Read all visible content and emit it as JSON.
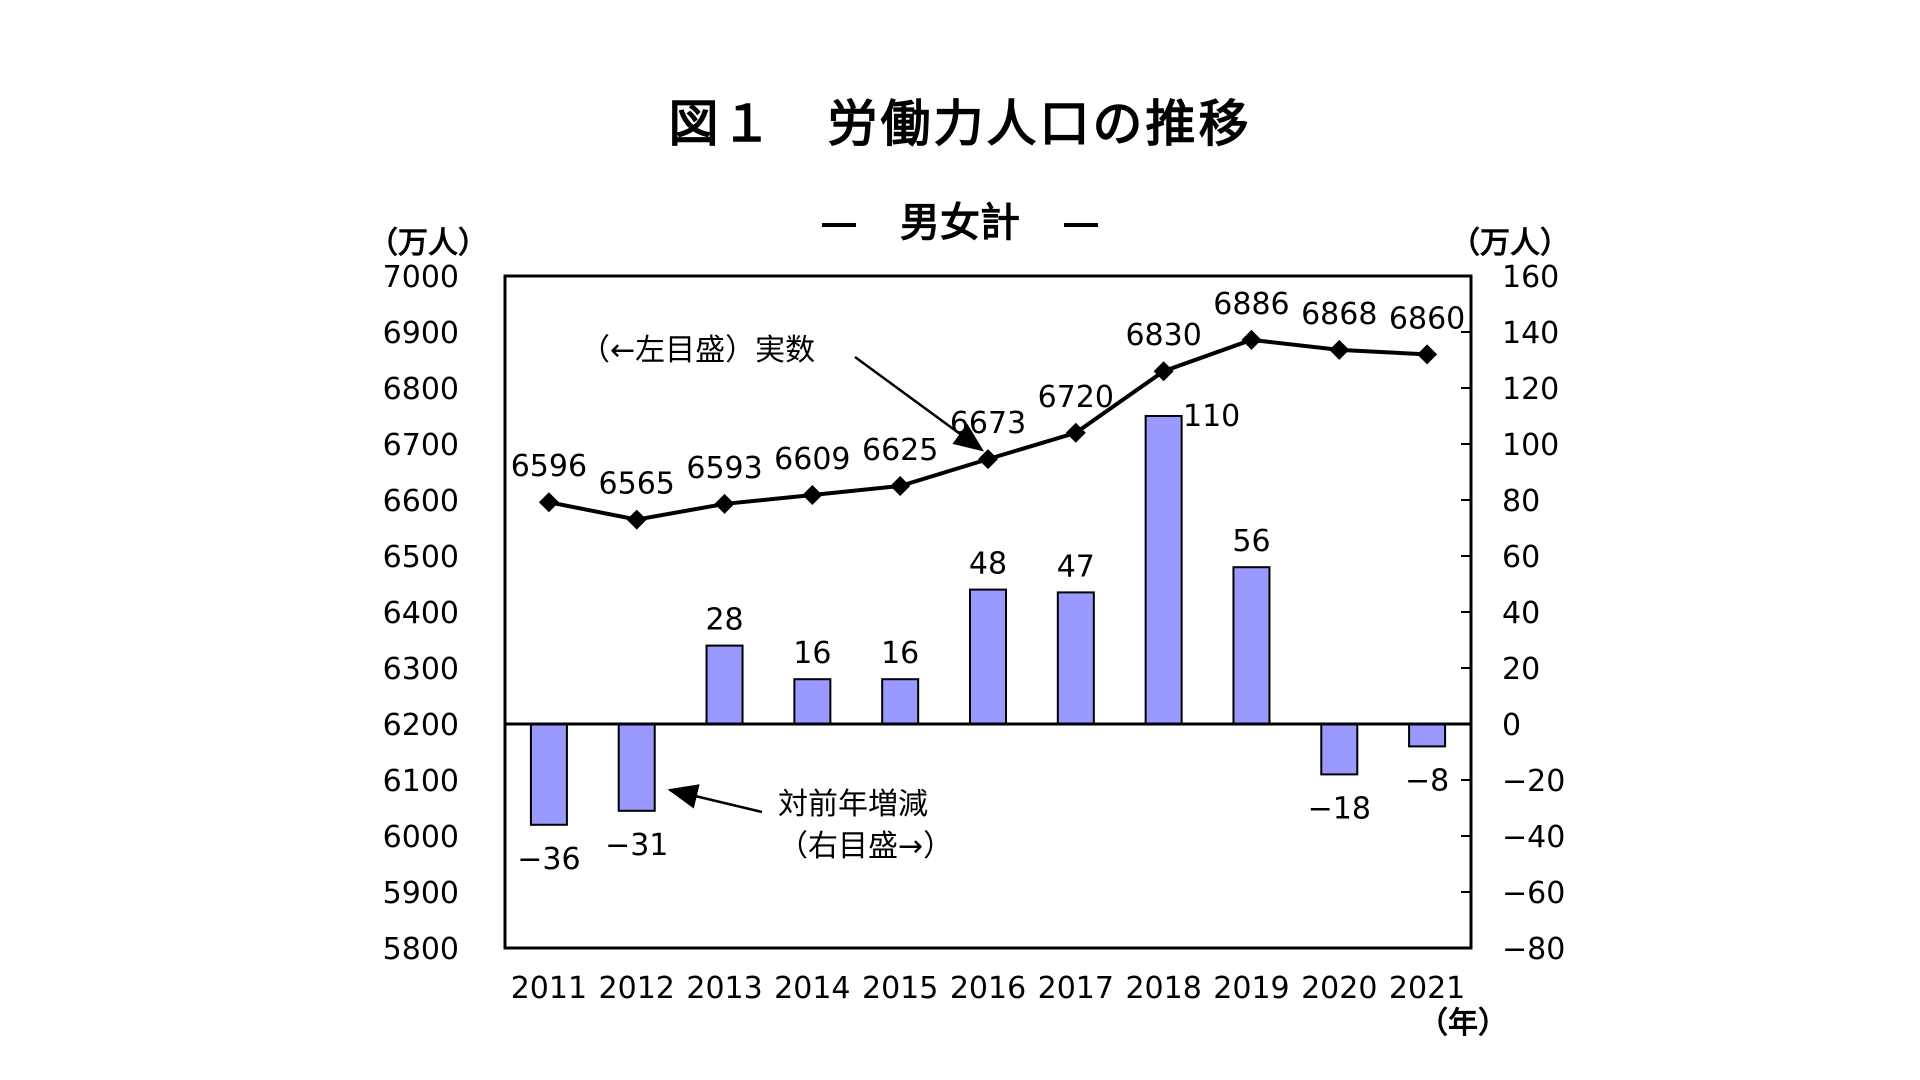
{
  "title": "図１　労働力人口の推移",
  "subtitle": "男女計",
  "left_unit": "（万人）",
  "right_unit": "（万人）",
  "x_unit": "（年）",
  "annotation_line": "（←左目盛）実数",
  "annotation_bar_1": "対前年増減",
  "annotation_bar_2": "（右目盛→）",
  "colors": {
    "bar": "#9999ff",
    "line": "#000000"
  },
  "chart_data": {
    "type": "bar+line",
    "title": "図１　労働力人口の推移",
    "subtitle": "男女計",
    "categories": [
      "2011",
      "2012",
      "2013",
      "2014",
      "2015",
      "2016",
      "2017",
      "2018",
      "2019",
      "2020",
      "2021"
    ],
    "series": [
      {
        "name": "実数",
        "type": "line",
        "axis": "left",
        "values": [
          6596,
          6565,
          6593,
          6609,
          6625,
          6673,
          6720,
          6830,
          6886,
          6868,
          6860
        ]
      },
      {
        "name": "対前年増減",
        "type": "bar",
        "axis": "right",
        "values": [
          -36,
          -31,
          28,
          16,
          16,
          48,
          47,
          110,
          56,
          -18,
          -8
        ]
      }
    ],
    "y_left": {
      "min": 5800,
      "max": 7000,
      "ticks": [
        7000,
        6900,
        6800,
        6700,
        6600,
        6500,
        6400,
        6300,
        6200,
        6100,
        6000,
        5900,
        5800
      ]
    },
    "y_right": {
      "min": -80,
      "max": 160,
      "ticks": [
        160,
        140,
        120,
        100,
        80,
        60,
        40,
        20,
        0,
        -20,
        -40,
        -60,
        -80
      ]
    },
    "xlabel": "（年）"
  }
}
